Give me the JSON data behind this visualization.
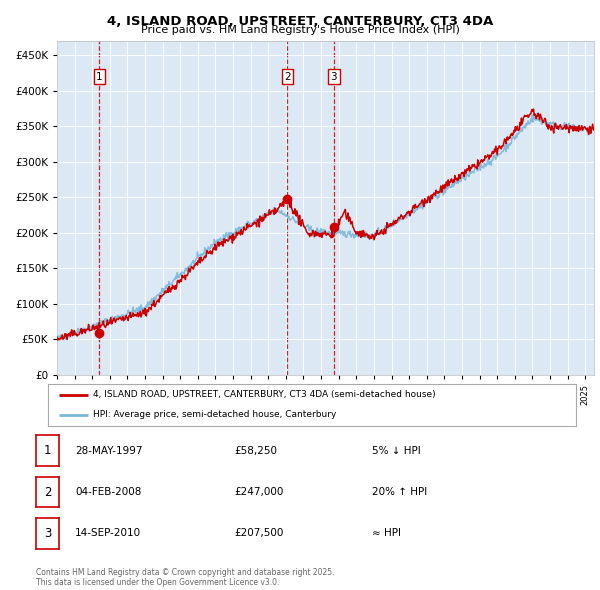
{
  "title_line1": "4, ISLAND ROAD, UPSTREET, CANTERBURY, CT3 4DA",
  "title_line2": "Price paid vs. HM Land Registry's House Price Index (HPI)",
  "legend_entry1": "4, ISLAND ROAD, UPSTREET, CANTERBURY, CT3 4DA (semi-detached house)",
  "legend_entry2": "HPI: Average price, semi-detached house, Canterbury",
  "sale1_label": "1",
  "sale1_date": "28-MAY-1997",
  "sale1_price": "£58,250",
  "sale1_note": "5% ↓ HPI",
  "sale1_year": 1997.41,
  "sale1_value": 58250,
  "sale2_label": "2",
  "sale2_date": "04-FEB-2008",
  "sale2_price": "£247,000",
  "sale2_note": "20% ↑ HPI",
  "sale2_year": 2008.09,
  "sale2_value": 247000,
  "sale3_label": "3",
  "sale3_date": "14-SEP-2010",
  "sale3_price": "£207,500",
  "sale3_note": "≈ HPI",
  "sale3_year": 2010.71,
  "sale3_value": 207500,
  "hpi_color": "#7ab8d9",
  "price_color": "#cc0000",
  "vline_color": "#cc0000",
  "plot_background": "#dce9f5",
  "ylim": [
    0,
    470000
  ],
  "xlim_start": 1995,
  "xlim_end": 2025.5,
  "yticks": [
    0,
    50000,
    100000,
    150000,
    200000,
    250000,
    300000,
    350000,
    400000,
    450000
  ],
  "footnote": "Contains HM Land Registry data © Crown copyright and database right 2025.\nThis data is licensed under the Open Government Licence v3.0."
}
